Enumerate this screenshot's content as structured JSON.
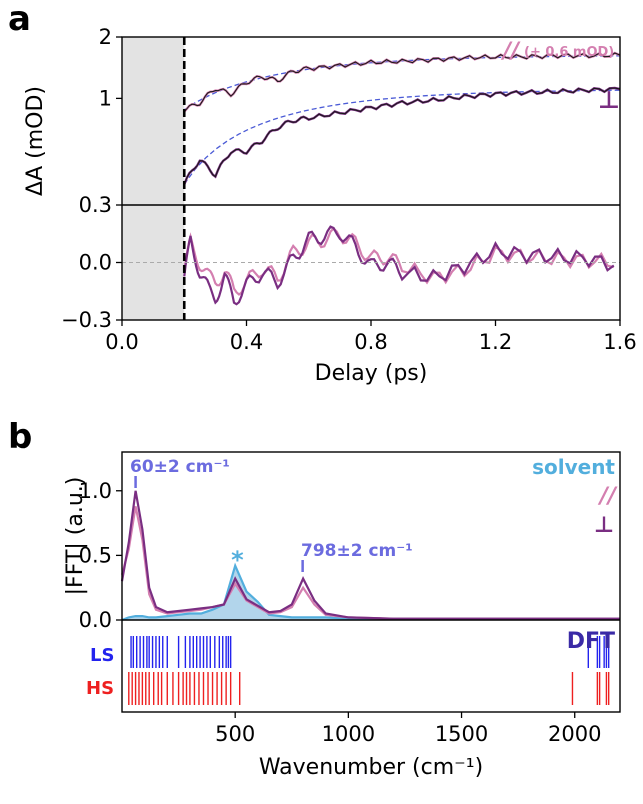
{
  "colors": {
    "parallel": "#d47fb0",
    "perpendicular": "#7a2e82",
    "fit": "#4b5bd6",
    "solvent": "#52aedd",
    "solvent_fill": "#9fcbe6",
    "ls": "#2323ee",
    "hs": "#ee2020",
    "dft": "#3a2aa6",
    "peak_label": "#6b6bdf",
    "shade": "#e3e3e3"
  },
  "chart_data": [
    {
      "panel": "a",
      "type": "line",
      "ylabel": "ΔA (mOD)",
      "xlabel": "Delay (ps)",
      "xlim": [
        0.0,
        1.6
      ],
      "x_ticks": [
        "0.0",
        "0.4",
        "0.8",
        "1.2",
        "1.6"
      ],
      "top": {
        "ylim": [
          0.3,
          2.0
        ],
        "y_ticks": [
          "0.3",
          "1",
          "2"
        ],
        "series": [
          {
            "name": "//",
            "annotation": "(+ 0.6 mOD)",
            "x": [
              0.2,
              0.25,
              0.3,
              0.35,
              0.4,
              0.45,
              0.5,
              0.55,
              0.6,
              0.7,
              0.8,
              0.9,
              1.0,
              1.1,
              1.2,
              1.3,
              1.4,
              1.5,
              1.6
            ],
            "values": [
              0.88,
              0.95,
              1.12,
              1.05,
              1.2,
              1.28,
              1.22,
              1.36,
              1.4,
              1.45,
              1.5,
              1.52,
              1.55,
              1.58,
              1.6,
              1.6,
              1.62,
              1.62,
              1.63
            ]
          },
          {
            "name": "⊥",
            "x": [
              0.2,
              0.25,
              0.3,
              0.35,
              0.4,
              0.45,
              0.5,
              0.55,
              0.6,
              0.7,
              0.8,
              0.9,
              1.0,
              1.1,
              1.2,
              1.3,
              1.4,
              1.5,
              1.6
            ],
            "values": [
              0.38,
              0.5,
              0.42,
              0.55,
              0.55,
              0.62,
              0.72,
              0.78,
              0.8,
              0.85,
              0.9,
              0.95,
              0.98,
              1.02,
              1.05,
              1.07,
              1.08,
              1.1,
              1.11
            ]
          }
        ],
        "shaded_region": [
          0.0,
          0.2
        ],
        "dashed_vline": 0.2
      },
      "bottom": {
        "ylim": [
          -0.3,
          0.3
        ],
        "y_ticks": [
          "−0.3",
          "0.0",
          "0.3"
        ],
        "x": [
          0.2,
          0.22,
          0.25,
          0.28,
          0.3,
          0.33,
          0.36,
          0.4,
          0.45,
          0.5,
          0.55,
          0.6,
          0.65,
          0.7,
          0.75,
          0.8,
          0.85,
          0.9,
          1.0,
          1.1,
          1.2,
          1.3,
          1.4,
          1.5,
          1.6
        ],
        "series": [
          {
            "name": "//",
            "values": [
              -0.05,
              0.1,
              0.0,
              -0.08,
              -0.1,
              -0.05,
              -0.15,
              -0.1,
              -0.03,
              -0.08,
              0.05,
              0.1,
              0.12,
              0.15,
              0.1,
              0.02,
              0.03,
              -0.02,
              -0.08,
              -0.04,
              0.05,
              0.03,
              0.02,
              0.01,
              0.0
            ]
          },
          {
            "name": "⊥",
            "values": [
              -0.1,
              0.12,
              -0.05,
              -0.15,
              -0.18,
              -0.08,
              -0.2,
              -0.12,
              -0.05,
              -0.1,
              0.02,
              0.12,
              0.14,
              0.16,
              0.08,
              -0.02,
              0.0,
              -0.05,
              -0.08,
              -0.02,
              0.06,
              0.04,
              0.03,
              0.02,
              -0.02
            ]
          }
        ]
      }
    },
    {
      "panel": "b",
      "type": "line",
      "ylabel": "|FFT| (a.u.)",
      "xlabel": "Wavenumber (cm⁻¹)",
      "xlim": [
        0,
        2200
      ],
      "ylim": [
        0,
        1.3
      ],
      "x_ticks": [
        "500",
        "1000",
        "1500",
        "2000"
      ],
      "y_ticks": [
        "0.0",
        "0.5",
        "1.0"
      ],
      "legend": [
        "solvent",
        "//",
        "⊥"
      ],
      "x": [
        0,
        30,
        60,
        90,
        120,
        150,
        200,
        250,
        300,
        350,
        400,
        450,
        500,
        550,
        600,
        650,
        700,
        750,
        800,
        850,
        900,
        1000,
        1200,
        1400,
        1600,
        1800,
        2000,
        2200
      ],
      "series": [
        {
          "name": "solvent",
          "values": [
            0.0,
            0.02,
            0.03,
            0.03,
            0.02,
            0.02,
            0.03,
            0.04,
            0.05,
            0.05,
            0.08,
            0.12,
            0.42,
            0.22,
            0.14,
            0.04,
            0.03,
            0.02,
            0.02,
            0.02,
            0.02,
            0.01,
            0.01,
            0.01,
            0.01,
            0.01,
            0.01,
            0.01
          ]
        },
        {
          "name": "//",
          "values": [
            0.35,
            0.55,
            0.88,
            0.62,
            0.2,
            0.08,
            0.05,
            0.06,
            0.07,
            0.08,
            0.1,
            0.12,
            0.28,
            0.15,
            0.1,
            0.05,
            0.06,
            0.1,
            0.25,
            0.12,
            0.04,
            0.02,
            0.01,
            0.01,
            0.01,
            0.01,
            0.01,
            0.01
          ]
        },
        {
          "name": "⊥",
          "values": [
            0.3,
            0.6,
            1.0,
            0.7,
            0.25,
            0.1,
            0.06,
            0.07,
            0.08,
            0.09,
            0.1,
            0.12,
            0.32,
            0.16,
            0.11,
            0.06,
            0.07,
            0.12,
            0.32,
            0.15,
            0.05,
            0.02,
            0.01,
            0.01,
            0.01,
            0.01,
            0.01,
            0.01
          ]
        }
      ],
      "annotations": [
        {
          "text": "60±2 cm⁻¹",
          "x": 60
        },
        {
          "text": "798±2 cm⁻¹",
          "x": 798
        },
        {
          "text": "*",
          "x": 500
        }
      ],
      "dft": {
        "label": "DFT",
        "LS": [
          40,
          50,
          65,
          80,
          95,
          110,
          120,
          135,
          150,
          165,
          180,
          200,
          250,
          280,
          300,
          315,
          330,
          345,
          360,
          375,
          390,
          410,
          430,
          445,
          460,
          470,
          480,
          2060,
          2100,
          2110,
          2130,
          2140,
          2150
        ],
        "HS": [
          30,
          45,
          60,
          75,
          90,
          105,
          120,
          140,
          160,
          175,
          200,
          225,
          250,
          270,
          285,
          300,
          320,
          340,
          360,
          380,
          400,
          420,
          440,
          460,
          480,
          520,
          1990,
          2100,
          2110,
          2140,
          2150
        ]
      }
    }
  ],
  "labels": {
    "panel_a": "a",
    "panel_b": "b",
    "parallel_symbol": "//",
    "parallel_offset": "(+ 0.6 mOD)",
    "perp_symbol": "⊥",
    "solvent": "solvent",
    "ls": "LS",
    "hs": "HS"
  }
}
